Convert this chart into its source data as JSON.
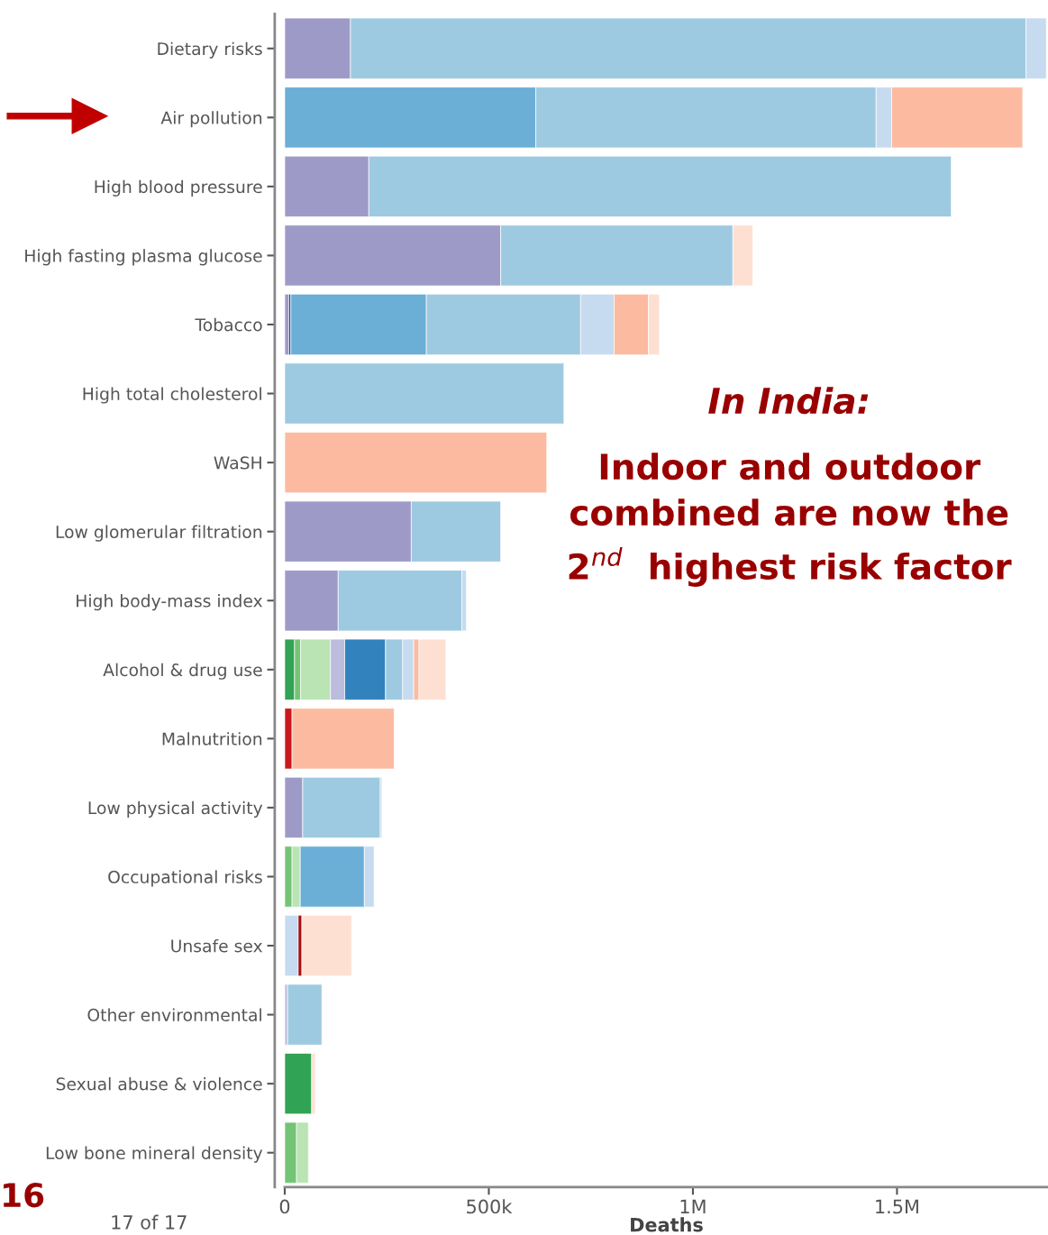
{
  "chart_data": {
    "type": "bar",
    "orientation": "horizontal",
    "stacked": true,
    "xlabel": "Deaths",
    "categories": [
      "Dietary risks",
      "Air pollution",
      "High blood pressure",
      "High fasting plasma glucose",
      "Tobacco",
      "High total cholesterol",
      "WaSH",
      "Low glomerular filtration",
      "High body-mass index",
      "Alcohol & drug use",
      "Malnutrition",
      "Low physical activity",
      "Occupational risks",
      "Unsafe sex",
      "Other environmental",
      "Sexual abuse & violence",
      "Low bone mineral density"
    ],
    "series": [
      {
        "values": [
          161000,
          615000,
          206000,
          529000,
          10000,
          684000,
          642000,
          310000,
          131000,
          24000,
          18000,
          44000,
          18000,
          33000,
          7000,
          66000,
          29000
        ],
        "colors": [
          "#9e9ac8",
          "#6baed6",
          "#9e9ac8",
          "#9e9ac8",
          "#9e9ac8",
          "#9ecae1",
          "#fcbba1",
          "#9e9ac8",
          "#9e9ac8",
          "#31a354",
          "#cb181d",
          "#9e9ac8",
          "#74c476",
          "#c6dbef",
          "#bcbddc",
          "#31a354",
          "#74c476"
        ]
      },
      {
        "values": [
          1655000,
          834000,
          1427000,
          569000,
          5000,
          null,
          null,
          219000,
          303000,
          15000,
          250000,
          190000,
          20000,
          9000,
          84000,
          9000,
          29000
        ],
        "colors": [
          "#9ecae1",
          "#9ecae1",
          "#9ecae1",
          "#9ecae1",
          "#08519c",
          null,
          null,
          "#9ecae1",
          "#9ecae1",
          "#74c476",
          "#fcbba1",
          "#9ecae1",
          "#bae4b3",
          "#a50f15",
          "#9ecae1",
          "#fee0d2",
          "#bae4b3"
        ]
      },
      {
        "values": [
          50000,
          38000,
          null,
          49000,
          332000,
          null,
          null,
          null,
          11000,
          73000,
          null,
          4000,
          157000,
          122000,
          null,
          null,
          null
        ],
        "colors": [
          "#c6dbef",
          "#c6dbef",
          null,
          "#fee0d2",
          "#6baed6",
          null,
          null,
          null,
          "#c6dbef",
          "#bae4b3",
          null,
          "#c6dbef",
          "#6baed6",
          "#fee0d2",
          null,
          null,
          null
        ]
      },
      {
        "values": [
          null,
          321000,
          null,
          null,
          378000,
          null,
          null,
          null,
          null,
          35000,
          null,
          null,
          24000,
          null,
          null,
          null,
          null
        ],
        "colors": [
          null,
          "#fcbba1",
          null,
          null,
          "#9ecae1",
          null,
          null,
          null,
          null,
          "#bcbddc",
          null,
          null,
          "#c6dbef",
          null,
          null,
          null,
          null
        ]
      },
      {
        "values": [
          null,
          null,
          null,
          null,
          82000,
          null,
          null,
          null,
          null,
          100000,
          null,
          null,
          null,
          null,
          null,
          null,
          null
        ],
        "colors": [
          null,
          null,
          null,
          null,
          "#c6dbef",
          null,
          null,
          null,
          null,
          "#3182bd",
          null,
          null,
          null,
          null,
          null,
          null,
          null
        ]
      },
      {
        "values": [
          null,
          null,
          null,
          null,
          84000,
          null,
          null,
          null,
          null,
          42000,
          null,
          null,
          null,
          null,
          null,
          null,
          null
        ],
        "colors": [
          null,
          null,
          null,
          null,
          "#fcbba1",
          null,
          null,
          null,
          null,
          "#9ecae1",
          null,
          null,
          null,
          null,
          null,
          null,
          null
        ]
      },
      {
        "values": [
          null,
          null,
          null,
          null,
          27000,
          null,
          null,
          null,
          null,
          27000,
          null,
          null,
          null,
          null,
          null,
          null,
          null
        ],
        "colors": [
          null,
          null,
          null,
          null,
          "#fee0d2",
          null,
          null,
          null,
          null,
          "#c6dbef",
          null,
          null,
          null,
          null,
          null,
          null,
          null
        ]
      },
      {
        "values": [
          null,
          null,
          null,
          null,
          null,
          null,
          null,
          null,
          null,
          13000,
          null,
          null,
          null,
          null,
          null,
          null,
          null
        ],
        "colors": [
          null,
          null,
          null,
          null,
          null,
          null,
          null,
          null,
          null,
          "#fcbba1",
          null,
          null,
          null,
          null,
          null,
          null,
          null
        ]
      },
      {
        "values": [
          null,
          null,
          null,
          null,
          null,
          null,
          null,
          null,
          null,
          66000,
          null,
          null,
          null,
          null,
          null,
          null,
          null
        ],
        "colors": [
          null,
          null,
          null,
          null,
          null,
          null,
          null,
          null,
          null,
          "#fee0d2",
          null,
          null,
          null,
          null,
          null,
          null,
          null
        ]
      }
    ],
    "xlim": [
      0,
      1870000
    ],
    "xticks": [
      0,
      {
        "value": 500000,
        "label": "500k"
      },
      {
        "value": 1000000,
        "label": "1M"
      },
      {
        "value": 1500000,
        "label": "1.5M"
      }
    ],
    "grid": false,
    "legend": false,
    "annotations": [
      "In India:",
      "Indoor and outdoor\ncombined are now the\n2$^{nd}$  highest risk factor",
      "16",
      "17 of 17"
    ]
  }
}
